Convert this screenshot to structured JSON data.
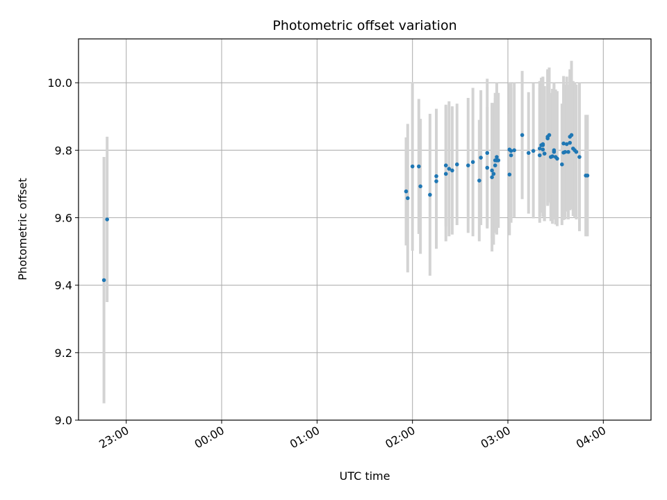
{
  "chart_data": {
    "type": "scatter",
    "title": "Photometric offset variation",
    "xlabel": "UTC time",
    "ylabel": "Photometric offset",
    "x_axis_kind": "time",
    "xlim": [
      "22:30",
      "04:30"
    ],
    "ylim": [
      9.0,
      10.13
    ],
    "grid": true,
    "x_ticks": [
      "23:00",
      "00:00",
      "01:00",
      "02:00",
      "03:00",
      "04:00"
    ],
    "y_ticks": [
      "9.0",
      "9.2",
      "9.4",
      "9.6",
      "9.8",
      "10.0"
    ],
    "colors": {
      "marker": "#1f77b4",
      "errorbar": "#d3d3d3",
      "grid": "#b0b0b0"
    },
    "series": [
      {
        "x": [
          "22:46",
          "22:48",
          "01:56",
          "01:57",
          "02:00",
          "02:04",
          "02:05",
          "02:11",
          "02:15",
          "02:15",
          "02:21",
          "02:21",
          "02:23",
          "02:25",
          "02:28",
          "02:35",
          "02:38",
          "02:42",
          "02:43",
          "02:47",
          "02:47",
          "02:50",
          "02:50",
          "02:51",
          "02:52",
          "02:52",
          "02:53",
          "02:53",
          "02:53",
          "02:54",
          "03:01",
          "03:01",
          "03:02",
          "03:02",
          "03:04",
          "03:09",
          "03:13",
          "03:16",
          "03:20",
          "03:20",
          "03:21",
          "03:22",
          "03:22",
          "03:22",
          "03:23",
          "03:23",
          "03:25",
          "03:25",
          "03:26",
          "03:27",
          "03:28",
          "03:29",
          "03:29",
          "03:30",
          "03:31",
          "03:34",
          "03:35",
          "03:35",
          "03:36",
          "03:37",
          "03:38",
          "03:39",
          "03:39",
          "03:40",
          "03:41",
          "03:42",
          "03:43",
          "03:45",
          "03:49",
          "03:50"
        ],
        "y": [
          9.415,
          9.595,
          9.678,
          9.658,
          9.752,
          9.752,
          9.693,
          9.668,
          9.708,
          9.723,
          9.73,
          9.755,
          9.745,
          9.74,
          9.758,
          9.755,
          9.765,
          9.71,
          9.778,
          9.792,
          9.748,
          9.74,
          9.72,
          9.73,
          9.77,
          9.755,
          9.77,
          9.78,
          9.77,
          9.77,
          9.802,
          9.728,
          9.798,
          9.785,
          9.8,
          9.845,
          9.792,
          9.798,
          9.805,
          9.785,
          9.815,
          9.815,
          9.802,
          9.818,
          9.79,
          9.79,
          9.835,
          9.84,
          9.845,
          9.78,
          9.782,
          9.795,
          9.8,
          9.78,
          9.775,
          9.758,
          9.793,
          9.82,
          9.795,
          9.818,
          9.795,
          9.84,
          9.822,
          9.845,
          9.805,
          9.8,
          9.795,
          9.78,
          9.725,
          9.725
        ],
        "yerr": [
          0.365,
          0.245,
          0.16,
          0.22,
          0.25,
          0.2,
          0.2,
          0.24,
          0.2,
          0.2,
          0.2,
          0.18,
          0.2,
          0.19,
          0.18,
          0.2,
          0.22,
          0.18,
          0.2,
          0.22,
          0.18,
          0.2,
          0.22,
          0.21,
          0.2,
          0.2,
          0.22,
          0.22,
          0.19,
          0.2,
          0.2,
          0.18,
          0.2,
          0.2,
          0.2,
          0.19,
          0.18,
          0.2,
          0.2,
          0.2,
          0.2,
          0.2,
          0.2,
          0.2,
          0.2,
          0.2,
          0.2,
          0.2,
          0.2,
          0.19,
          0.2,
          0.2,
          0.2,
          0.2,
          0.2,
          0.18,
          0.2,
          0.2,
          0.2,
          0.2,
          0.2,
          0.2,
          0.2,
          0.22,
          0.2,
          0.2,
          0.2,
          0.22,
          0.18,
          0.18
        ]
      }
    ]
  }
}
